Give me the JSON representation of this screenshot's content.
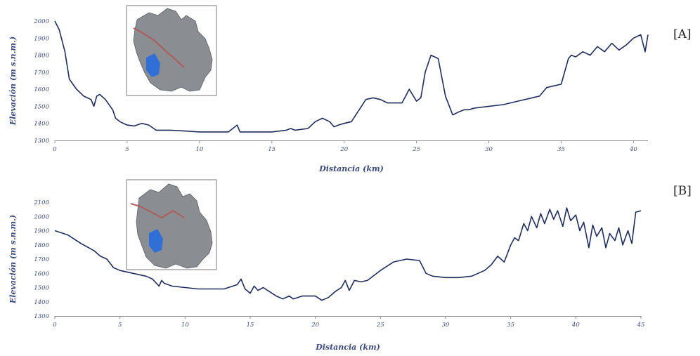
{
  "chart_data": [
    {
      "type": "line",
      "panel_label": "[A]",
      "xlabel": "Distancia (km)",
      "ylabel": "Elevación (m s.n.m.)",
      "xlim": [
        0,
        41
      ],
      "ylim": [
        1300,
        2000
      ],
      "xticks": [
        0,
        5,
        10,
        15,
        20,
        25,
        30,
        35,
        40
      ],
      "yticks": [
        1300,
        1400,
        1500,
        1600,
        1700,
        1800,
        1900,
        2000
      ],
      "grid": false,
      "series": [
        {
          "x": [
            0,
            0.3,
            0.7,
            1,
            1.5,
            2,
            2.5,
            2.7,
            2.9,
            3.1,
            3.5,
            4,
            4.2,
            4.5,
            5,
            5.5,
            6,
            6.5,
            7,
            8,
            9,
            10,
            11,
            12,
            12.6,
            12.8,
            13,
            14,
            15,
            16,
            16.3,
            16.6,
            17.5,
            18,
            18.5,
            19,
            19.3,
            19.6,
            20,
            20.5,
            21.5,
            22,
            22.5,
            23,
            24,
            24.5,
            25,
            25.3,
            25.6,
            26,
            26.5,
            27,
            27.5,
            28,
            28.3,
            28.6,
            29,
            30,
            31,
            32,
            33,
            33.5,
            34,
            34.5,
            35,
            35.5,
            35.7,
            36,
            36.5,
            37,
            37.5,
            38,
            38.5,
            39,
            39.5,
            40,
            40.5,
            40.8,
            41
          ],
          "y": [
            2000,
            1950,
            1820,
            1660,
            1600,
            1560,
            1540,
            1500,
            1560,
            1570,
            1540,
            1480,
            1430,
            1410,
            1390,
            1385,
            1400,
            1390,
            1360,
            1360,
            1355,
            1350,
            1350,
            1350,
            1390,
            1350,
            1350,
            1350,
            1350,
            1360,
            1370,
            1360,
            1370,
            1410,
            1430,
            1410,
            1380,
            1390,
            1400,
            1410,
            1540,
            1550,
            1540,
            1520,
            1520,
            1600,
            1530,
            1550,
            1700,
            1800,
            1780,
            1560,
            1450,
            1470,
            1480,
            1480,
            1490,
            1500,
            1510,
            1530,
            1550,
            1560,
            1610,
            1620,
            1630,
            1780,
            1800,
            1790,
            1820,
            1800,
            1850,
            1820,
            1870,
            1830,
            1860,
            1900,
            1920,
            1820,
            1920
          ]
        }
      ]
    },
    {
      "type": "line",
      "panel_label": "[B]",
      "xlabel": "Distancia (km)",
      "ylabel": "Elevación (m s.n.m.)",
      "xlim": [
        0,
        45
      ],
      "ylim": [
        1300,
        2100
      ],
      "xticks": [
        0,
        5,
        10,
        15,
        20,
        25,
        30,
        35,
        40,
        45
      ],
      "yticks": [
        1300,
        1400,
        1500,
        1600,
        1700,
        1800,
        1900,
        2000,
        2100
      ],
      "grid": false,
      "series": [
        {
          "x": [
            0,
            1,
            2,
            3,
            3.5,
            4,
            4.5,
            5,
            5.5,
            6,
            7,
            7.5,
            8,
            8.2,
            8.4,
            9,
            10,
            11,
            12,
            13,
            14,
            14.3,
            14.6,
            15,
            15.3,
            15.6,
            16,
            16.5,
            17,
            17.5,
            18,
            18.3,
            19,
            20,
            20.5,
            21,
            21.5,
            22,
            22.3,
            22.6,
            23,
            23.5,
            24,
            25,
            26,
            27,
            28,
            28.5,
            29,
            30,
            31,
            32,
            33,
            33.5,
            34,
            34.5,
            35,
            35.3,
            35.6,
            36,
            36.3,
            36.6,
            37,
            37.3,
            37.6,
            38,
            38.3,
            38.6,
            39,
            39.3,
            39.6,
            40,
            40.3,
            40.6,
            41,
            41.3,
            41.6,
            42,
            42.3,
            42.6,
            43,
            43.3,
            43.6,
            44,
            44.3,
            44.6,
            45
          ],
          "y": [
            1900,
            1870,
            1810,
            1760,
            1720,
            1700,
            1640,
            1620,
            1610,
            1600,
            1580,
            1560,
            1510,
            1550,
            1530,
            1510,
            1500,
            1490,
            1490,
            1490,
            1520,
            1560,
            1490,
            1460,
            1510,
            1480,
            1500,
            1470,
            1440,
            1420,
            1440,
            1420,
            1440,
            1440,
            1410,
            1430,
            1470,
            1500,
            1550,
            1480,
            1550,
            1540,
            1550,
            1620,
            1680,
            1700,
            1690,
            1600,
            1580,
            1570,
            1570,
            1580,
            1620,
            1660,
            1720,
            1680,
            1800,
            1850,
            1830,
            1950,
            1900,
            2000,
            1920,
            2020,
            1950,
            2050,
            1980,
            2040,
            1930,
            2060,
            1970,
            2010,
            1900,
            1960,
            1780,
            1940,
            1860,
            1920,
            1780,
            1880,
            1830,
            1920,
            1800,
            1900,
            1810,
            2030,
            2040
          ]
        }
      ]
    }
  ],
  "colors": {
    "line": "#1f2d5c",
    "axis_text": "#3b4a7a",
    "axis_line": "#8a8a8a",
    "map_terrain": "#8a8e93",
    "map_water": "#2f6fd6",
    "map_route": "#b05a5a"
  },
  "insets": {
    "A": {
      "icon": "watershed-map-icon"
    },
    "B": {
      "icon": "watershed-map-icon"
    }
  }
}
